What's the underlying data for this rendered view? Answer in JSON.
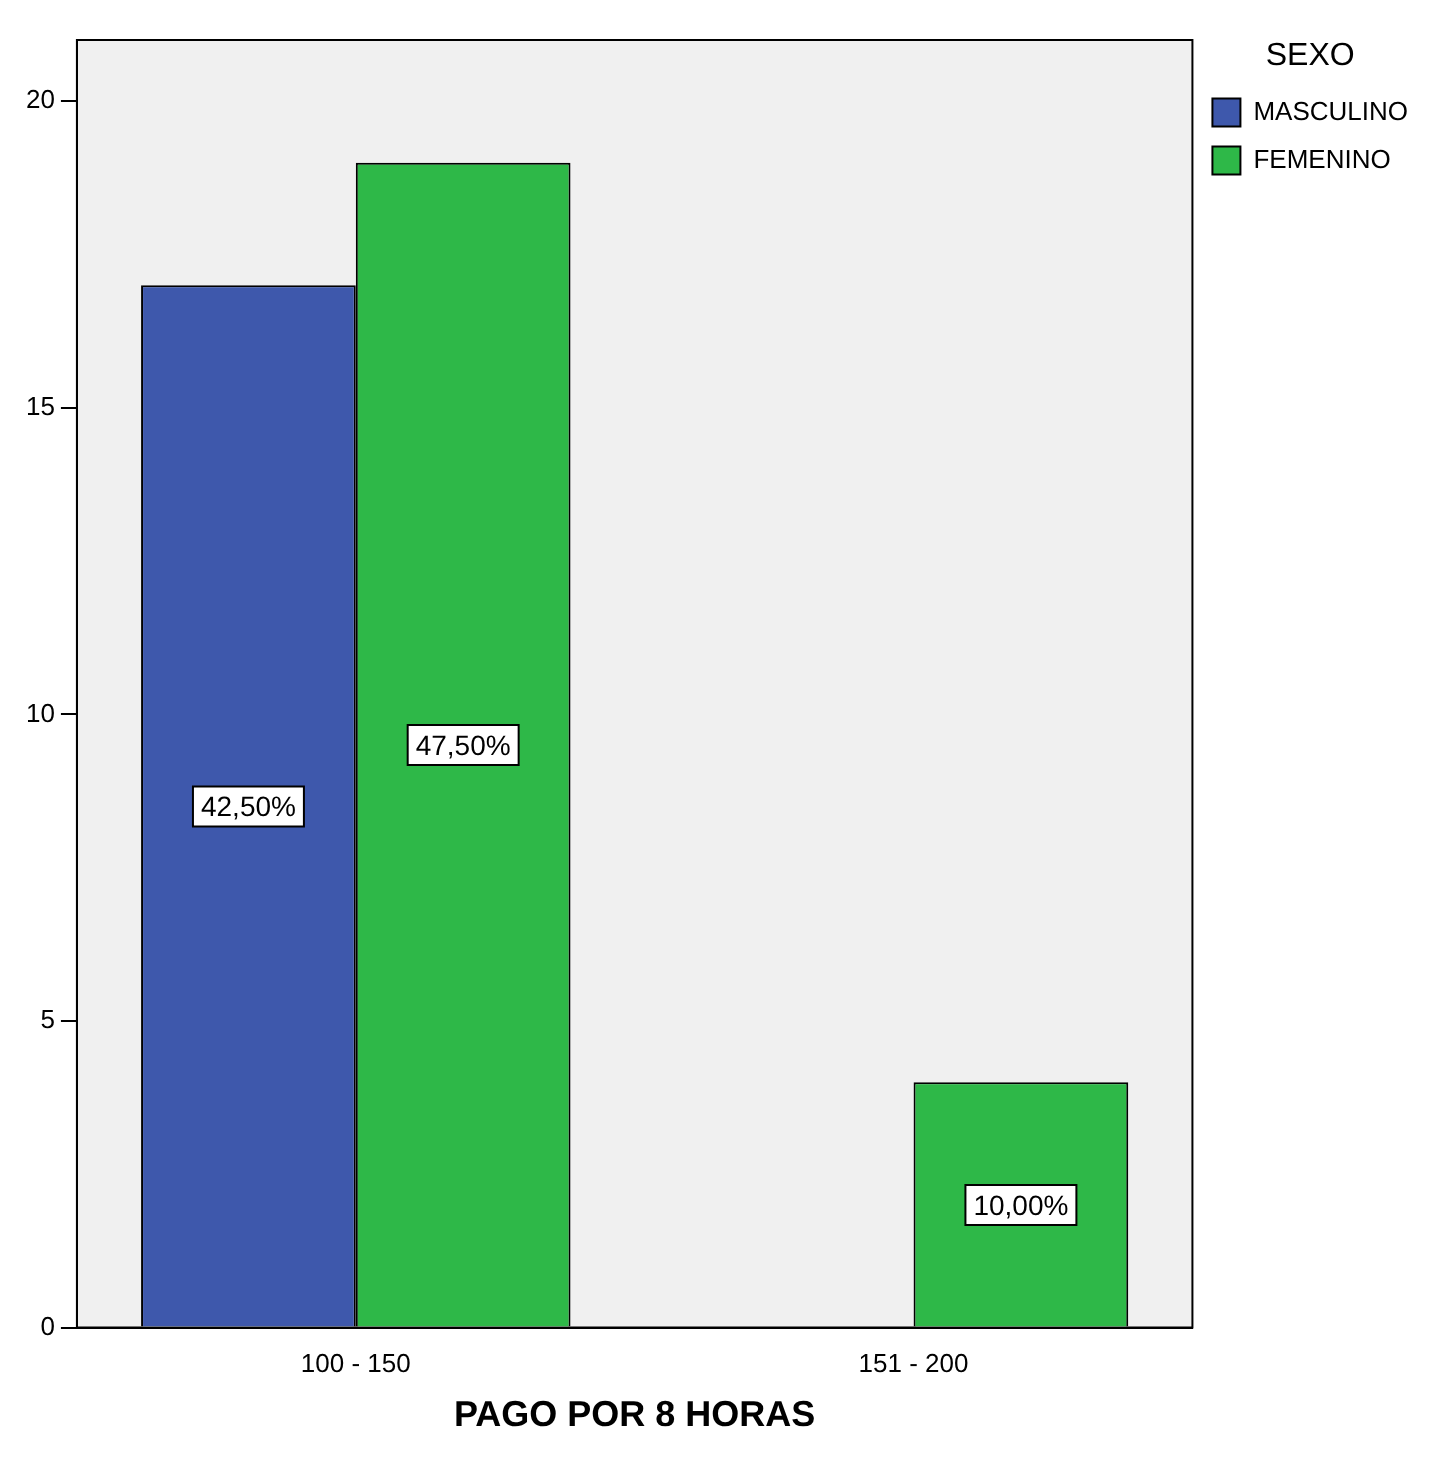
{
  "chart_data": {
    "type": "bar",
    "xlabel": "PAGO POR 8 HORAS",
    "legend_title": "SEXO",
    "legend": "top right",
    "categories": [
      "100 - 150",
      "151 - 200"
    ],
    "series": [
      {
        "name": "MASCULINO",
        "color": "#3e58ac",
        "values": [
          17,
          null
        ]
      },
      {
        "name": "FEMENINO",
        "color": "#2eb848",
        "values": [
          19,
          4
        ]
      }
    ],
    "annotations": [
      {
        "text": "42,50%",
        "x": "100 - 150",
        "y": 8.5
      },
      {
        "text": "47,50%",
        "x": "100 - 150",
        "y": 9.5
      },
      {
        "text": "10,00%",
        "x": "151 - 200",
        "y": 2
      }
    ],
    "ylim": [
      0,
      21
    ],
    "yticks": [
      0,
      5,
      10,
      15,
      20
    ],
    "grid": false
  }
}
